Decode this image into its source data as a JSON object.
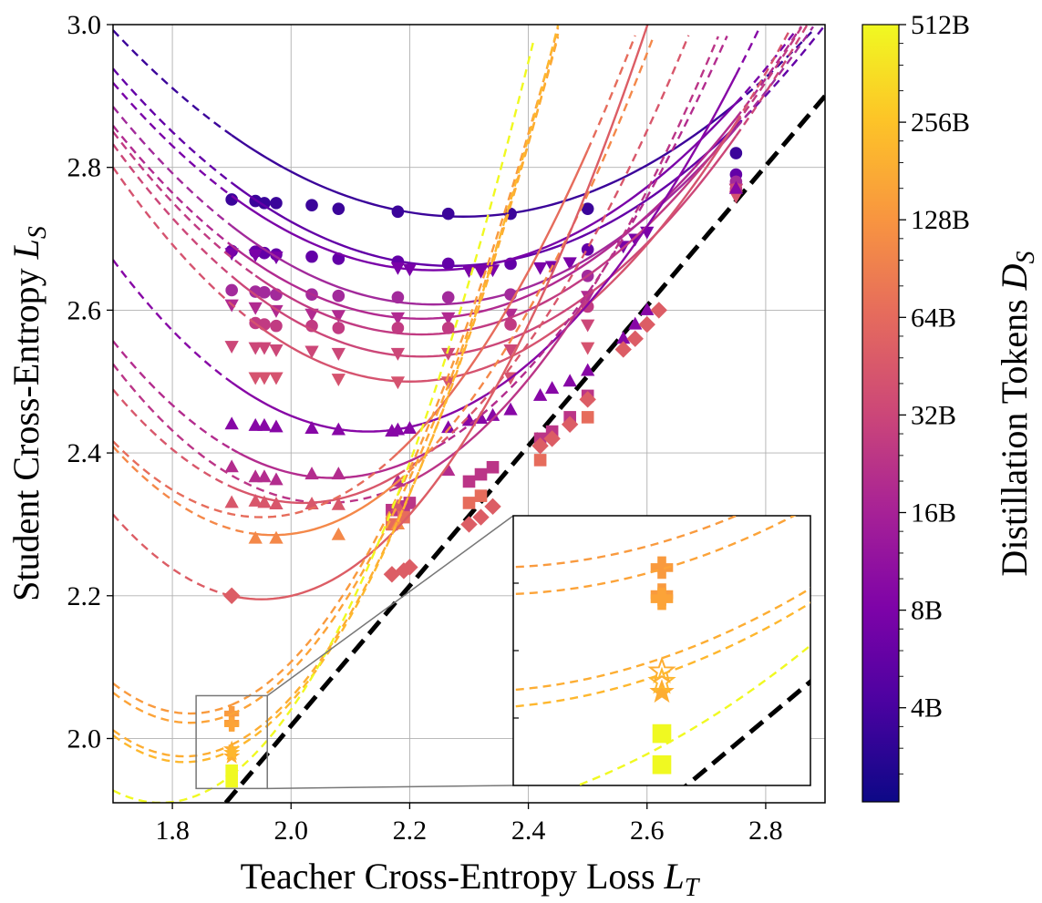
{
  "chart_data": {
    "type": "scatter",
    "xlabel": "Teacher Cross-Entropy Loss L_T",
    "ylabel": "Student Cross-Entropy L_S",
    "colorbar_label": "Distillation Tokens D_S",
    "xlim": [
      1.7,
      2.9
    ],
    "ylim": [
      1.91,
      3.0
    ],
    "xticks": [
      "1.8",
      "2.0",
      "2.2",
      "2.4",
      "2.6",
      "2.8"
    ],
    "yticks": [
      "2.0",
      "2.2",
      "2.4",
      "2.6",
      "2.8",
      "3.0"
    ],
    "colorbar_ticks": [
      "4B",
      "8B",
      "16B",
      "32B",
      "64B",
      "128B",
      "256B",
      "512B"
    ],
    "colormap": "plasma",
    "grid": true,
    "identity_line": {
      "style": "black thick dashed",
      "from": [
        1.89,
        1.91
      ],
      "to": [
        2.9,
        2.9
      ]
    },
    "curves": [
      {
        "marker": "circle",
        "tokens_B": 3,
        "color": "#3b049a",
        "points": [
          [
            1.9,
            2.755
          ],
          [
            1.94,
            2.753
          ],
          [
            1.955,
            2.75
          ],
          [
            1.975,
            2.75
          ],
          [
            2.035,
            2.747
          ],
          [
            2.08,
            2.742
          ],
          [
            2.18,
            2.738
          ],
          [
            2.265,
            2.735
          ],
          [
            2.37,
            2.735
          ],
          [
            2.5,
            2.742
          ],
          [
            2.75,
            2.82
          ]
        ],
        "fit": {
          "min_x": 2.29,
          "min_y": 2.731,
          "a": 0.75
        }
      },
      {
        "marker": "circle",
        "tokens_B": 6,
        "color": "#6300a7",
        "points": [
          [
            1.9,
            2.683
          ],
          [
            1.94,
            2.682
          ],
          [
            1.955,
            2.68
          ],
          [
            1.975,
            2.678
          ],
          [
            2.035,
            2.675
          ],
          [
            2.08,
            2.672
          ],
          [
            2.18,
            2.668
          ],
          [
            2.265,
            2.665
          ],
          [
            2.37,
            2.665
          ],
          [
            2.5,
            2.685
          ],
          [
            2.75,
            2.79
          ]
        ],
        "fit": {
          "min_x": 2.27,
          "min_y": 2.662,
          "a": 0.85
        }
      },
      {
        "marker": "triangle-down",
        "tokens_B": 7,
        "color": "#7a02a8",
        "points": [
          [
            1.9,
            2.68
          ],
          [
            1.94,
            2.678
          ],
          [
            1.975,
            2.675
          ],
          [
            2.18,
            2.66
          ],
          [
            2.2,
            2.658
          ],
          [
            2.3,
            2.656
          ],
          [
            2.32,
            2.655
          ],
          [
            2.34,
            2.657
          ],
          [
            2.42,
            2.66
          ],
          [
            2.44,
            2.662
          ],
          [
            2.47,
            2.667
          ],
          [
            2.56,
            2.69
          ],
          [
            2.58,
            2.7
          ],
          [
            2.6,
            2.71
          ],
          [
            2.75,
            2.77
          ]
        ],
        "fit": {
          "min_x": 2.24,
          "min_y": 2.656,
          "a": 0.9
        }
      },
      {
        "marker": "circle",
        "tokens_B": 16,
        "color": "#a22a9b",
        "points": [
          [
            1.9,
            2.628
          ],
          [
            1.94,
            2.626
          ],
          [
            1.955,
            2.625
          ],
          [
            1.975,
            2.622
          ],
          [
            2.035,
            2.622
          ],
          [
            2.08,
            2.62
          ],
          [
            2.18,
            2.618
          ],
          [
            2.265,
            2.618
          ],
          [
            2.37,
            2.622
          ],
          [
            2.5,
            2.648
          ],
          [
            2.75,
            2.78
          ]
        ],
        "fit": {
          "min_x": 2.24,
          "min_y": 2.608,
          "a": 0.95
        }
      },
      {
        "marker": "triangle-down",
        "tokens_B": 19,
        "color": "#b12a90",
        "points": [
          [
            1.9,
            2.608
          ],
          [
            1.94,
            2.604
          ],
          [
            1.975,
            2.6
          ],
          [
            2.035,
            2.595
          ],
          [
            2.08,
            2.593
          ],
          [
            2.18,
            2.59
          ],
          [
            2.265,
            2.59
          ],
          [
            2.37,
            2.595
          ],
          [
            2.5,
            2.62
          ],
          [
            2.75,
            2.77
          ]
        ],
        "fit": {
          "min_x": 2.22,
          "min_y": 2.588,
          "a": 1.0
        }
      },
      {
        "marker": "circle",
        "tokens_B": 24,
        "color": "#c13b82",
        "points": [
          [
            1.94,
            2.582
          ],
          [
            1.955,
            2.58
          ],
          [
            1.975,
            2.578
          ],
          [
            2.035,
            2.578
          ],
          [
            2.08,
            2.575
          ],
          [
            2.18,
            2.575
          ],
          [
            2.265,
            2.575
          ],
          [
            2.37,
            2.58
          ],
          [
            2.5,
            2.605
          ],
          [
            2.75,
            2.77
          ]
        ],
        "fit": {
          "min_x": 2.22,
          "min_y": 2.566,
          "a": 1.05
        }
      },
      {
        "marker": "triangle-down",
        "tokens_B": 28,
        "color": "#cc4778",
        "points": [
          [
            1.9,
            2.55
          ],
          [
            1.94,
            2.548
          ],
          [
            1.955,
            2.548
          ],
          [
            1.975,
            2.545
          ],
          [
            2.035,
            2.543
          ],
          [
            2.08,
            2.54
          ],
          [
            2.18,
            2.54
          ],
          [
            2.265,
            2.54
          ],
          [
            2.37,
            2.545
          ],
          [
            2.5,
            2.58
          ],
          [
            2.75,
            2.77
          ]
        ],
        "fit": {
          "min_x": 2.22,
          "min_y": 2.535,
          "a": 1.1
        }
      },
      {
        "marker": "triangle-down",
        "tokens_B": 36,
        "color": "#d5536f",
        "points": [
          [
            1.94,
            2.506
          ],
          [
            1.955,
            2.506
          ],
          [
            1.975,
            2.506
          ],
          [
            2.08,
            2.504
          ],
          [
            2.18,
            2.5
          ],
          [
            2.265,
            2.5
          ],
          [
            2.37,
            2.506
          ],
          [
            2.5,
            2.548
          ],
          [
            2.75,
            2.76
          ]
        ],
        "fit": {
          "min_x": 2.2,
          "min_y": 2.5,
          "a": 1.2
        }
      },
      {
        "marker": "triangle-up",
        "tokens_B": 10,
        "color": "#8707a6",
        "points": [
          [
            1.9,
            2.44
          ],
          [
            1.94,
            2.438
          ],
          [
            1.955,
            2.438
          ],
          [
            1.975,
            2.436
          ],
          [
            2.035,
            2.434
          ],
          [
            2.08,
            2.432
          ],
          [
            2.17,
            2.43
          ],
          [
            2.18,
            2.432
          ],
          [
            2.2,
            2.434
          ],
          [
            2.265,
            2.435
          ],
          [
            2.3,
            2.445
          ],
          [
            2.32,
            2.448
          ],
          [
            2.34,
            2.452
          ],
          [
            2.37,
            2.46
          ],
          [
            2.42,
            2.48
          ],
          [
            2.44,
            2.49
          ],
          [
            2.47,
            2.5
          ],
          [
            2.5,
            2.515
          ],
          [
            2.56,
            2.56
          ],
          [
            2.58,
            2.58
          ],
          [
            2.6,
            2.6
          ],
          [
            2.75,
            2.77
          ]
        ],
        "fit": {
          "min_x": 2.13,
          "min_y": 2.43,
          "a": 1.3
        }
      },
      {
        "marker": "triangle-up",
        "tokens_B": 20,
        "color": "#b32c8e",
        "points": [
          [
            1.9,
            2.38
          ],
          [
            1.94,
            2.366
          ],
          [
            1.955,
            2.366
          ],
          [
            1.975,
            2.362
          ],
          [
            2.035,
            2.37
          ],
          [
            2.08,
            2.37
          ],
          [
            2.18,
            2.36
          ],
          [
            2.265,
            2.375
          ]
        ],
        "fit": {
          "min_x": 2.07,
          "min_y": 2.365,
          "a": 1.4
        }
      },
      {
        "marker": "square",
        "tokens_B": 22,
        "color": "#bb3587",
        "points": [
          [
            2.17,
            2.32
          ],
          [
            2.19,
            2.325
          ],
          [
            2.2,
            2.33
          ],
          [
            2.3,
            2.36
          ],
          [
            2.32,
            2.37
          ],
          [
            2.34,
            2.38
          ],
          [
            2.42,
            2.42
          ],
          [
            2.44,
            2.43
          ],
          [
            2.47,
            2.45
          ],
          [
            2.5,
            2.48
          ]
        ],
        "fit": {
          "min_x": 2.06,
          "min_y": 2.33,
          "a": 1.5
        }
      },
      {
        "marker": "triangle-up",
        "tokens_B": 40,
        "color": "#d8576b",
        "points": [
          [
            1.9,
            2.33
          ],
          [
            1.94,
            2.332
          ],
          [
            1.955,
            2.33
          ],
          [
            1.975,
            2.328
          ],
          [
            2.035,
            2.328
          ],
          [
            2.08,
            2.327
          ],
          [
            2.18,
            2.325
          ]
        ],
        "fit": {
          "min_x": 2.02,
          "min_y": 2.33,
          "a": 1.55
        }
      },
      {
        "marker": "square",
        "tokens_B": 56,
        "color": "#e66c5c",
        "points": [
          [
            2.17,
            2.3
          ],
          [
            2.19,
            2.31
          ],
          [
            2.3,
            2.33
          ],
          [
            2.32,
            2.34
          ],
          [
            2.42,
            2.39
          ],
          [
            2.5,
            2.45
          ]
        ],
        "fit": {
          "min_x": 1.95,
          "min_y": 2.31,
          "a": 1.7
        }
      },
      {
        "marker": "triangle-up",
        "tokens_B": 100,
        "color": "#f48849",
        "points": [
          [
            1.94,
            2.28
          ],
          [
            1.975,
            2.28
          ],
          [
            2.08,
            2.285
          ],
          [
            2.18,
            2.3
          ]
        ],
        "fit": {
          "min_x": 1.97,
          "min_y": 2.285,
          "a": 1.7
        }
      },
      {
        "marker": "diamond",
        "tokens_B": 44,
        "color": "#dc5d65",
        "points": [
          [
            1.9,
            2.2
          ],
          [
            2.17,
            2.23
          ],
          [
            2.19,
            2.235
          ],
          [
            2.2,
            2.24
          ],
          [
            2.3,
            2.3
          ],
          [
            2.32,
            2.31
          ],
          [
            2.34,
            2.325
          ],
          [
            2.42,
            2.41
          ],
          [
            2.44,
            2.42
          ],
          [
            2.47,
            2.44
          ],
          [
            2.5,
            2.475
          ],
          [
            2.56,
            2.545
          ],
          [
            2.58,
            2.56
          ],
          [
            2.6,
            2.58
          ],
          [
            2.62,
            2.6
          ]
        ],
        "fit": {
          "min_x": 1.95,
          "min_y": 2.195,
          "a": 1.9
        }
      },
      {
        "marker": "plus",
        "tokens_B": 180,
        "color": "#f99a3e",
        "points": [
          [
            1.9,
            2.035
          ],
          [
            1.9,
            2.022
          ]
        ],
        "fit": {
          "min_x": 1.83,
          "min_y": 2.035,
          "a": 2.5
        }
      },
      {
        "marker": "plus",
        "tokens_B": 200,
        "color": "#fca338",
        "points": [
          [
            1.9,
            2.02
          ]
        ],
        "fit": {
          "min_x": 1.83,
          "min_y": 2.022,
          "a": 2.5
        }
      },
      {
        "marker": "star",
        "tokens_B": 220,
        "color": "#fdad32",
        "points": [
          [
            1.9,
            1.985
          ],
          [
            1.9,
            1.975
          ]
        ],
        "fit": {
          "min_x": 1.82,
          "min_y": 1.975,
          "a": 2.55
        }
      },
      {
        "marker": "star",
        "tokens_B": 250,
        "color": "#feb72d",
        "points": [
          [
            1.9,
            1.98
          ]
        ],
        "fit": {
          "min_x": 1.82,
          "min_y": 1.967,
          "a": 2.6
        }
      },
      {
        "marker": "square",
        "tokens_B": 400,
        "color": "#f0f921",
        "points": [
          [
            1.9,
            1.955
          ],
          [
            1.9,
            1.94
          ]
        ],
        "fit": {
          "min_x": 1.78,
          "min_y": 1.91,
          "a": 2.7
        }
      }
    ]
  }
}
